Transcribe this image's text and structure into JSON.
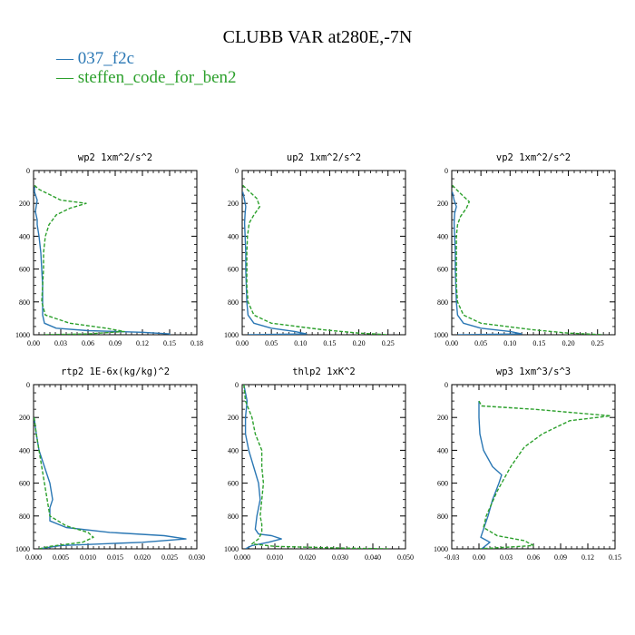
{
  "title": "CLUBB VAR at280E,-7N",
  "legend": [
    {
      "label": "037_f2c",
      "color": "#2a77b4"
    },
    {
      "label": "steffen_code_for_ben2",
      "color": "#2ca02c"
    }
  ],
  "chart_data": [
    {
      "type": "line",
      "title": "wp2  1xm^2/s^2",
      "xlim": [
        0,
        0.18
      ],
      "xticks": [
        "0.00",
        "0.03",
        "0.06",
        "0.09",
        "0.12",
        "0.15",
        "0.18"
      ],
      "ylim": [
        1000,
        0
      ],
      "yticks": [
        "0",
        "200",
        "400",
        "600",
        "800",
        "1000"
      ],
      "series": [
        {
          "name": "037_f2c",
          "color": "#2a77b4",
          "dash": "",
          "x": [
            0.001,
            0.001,
            0.004,
            0.002,
            0.004,
            0.004,
            0.006,
            0.008,
            0.009,
            0.01,
            0.01,
            0.01,
            0.012,
            0.025,
            0.06,
            0.12,
            0.15,
            0.15
          ],
          "y": [
            100,
            130,
            180,
            250,
            300,
            330,
            400,
            500,
            600,
            700,
            800,
            880,
            930,
            960,
            975,
            985,
            995,
            1000
          ]
        },
        {
          "name": "steffen_code_for_ben2",
          "color": "#2ca02c",
          "dash": "4,2",
          "x": [
            0.001,
            0.006,
            0.03,
            0.058,
            0.04,
            0.025,
            0.017,
            0.013,
            0.011,
            0.011,
            0.01,
            0.009,
            0.013,
            0.04,
            0.08,
            0.1,
            0.06,
            0.01
          ],
          "y": [
            90,
            115,
            180,
            200,
            230,
            270,
            330,
            400,
            500,
            600,
            700,
            800,
            880,
            930,
            960,
            980,
            995,
            1000
          ]
        }
      ]
    },
    {
      "type": "line",
      "title": "up2  1xm^2/s^2",
      "xlim": [
        0,
        0.28
      ],
      "xticks": [
        "0.00",
        "0.05",
        "0.10",
        "0.15",
        "0.20",
        "0.25"
      ],
      "ylim": [
        1000,
        0
      ],
      "yticks": [
        "0",
        "200",
        "400",
        "600",
        "800",
        "1000"
      ],
      "series": [
        {
          "name": "037_f2c",
          "color": "#2a77b4",
          "dash": "",
          "x": [
            0.001,
            0.004,
            0.006,
            0.005,
            0.004,
            0.005,
            0.006,
            0.006,
            0.007,
            0.008,
            0.01,
            0.02,
            0.05,
            0.09,
            0.11,
            0.01
          ],
          "y": [
            130,
            180,
            220,
            260,
            320,
            400,
            500,
            600,
            700,
            800,
            880,
            930,
            960,
            980,
            995,
            1000
          ]
        },
        {
          "name": "steffen_code_for_ben2",
          "color": "#2ca02c",
          "dash": "4,2",
          "x": [
            0.001,
            0.01,
            0.025,
            0.03,
            0.02,
            0.012,
            0.009,
            0.008,
            0.008,
            0.008,
            0.01,
            0.02,
            0.05,
            0.14,
            0.2,
            0.25
          ],
          "y": [
            90,
            120,
            170,
            220,
            270,
            320,
            400,
            500,
            600,
            700,
            800,
            880,
            930,
            970,
            990,
            1000
          ]
        }
      ]
    },
    {
      "type": "line",
      "title": "vp2  1xm^2/s^2",
      "xlim": [
        0,
        0.28
      ],
      "xticks": [
        "0.00",
        "0.05",
        "0.10",
        "0.15",
        "0.20",
        "0.25"
      ],
      "ylim": [
        1000,
        0
      ],
      "yticks": [
        "0",
        "200",
        "400",
        "600",
        "800",
        "1000"
      ],
      "series": [
        {
          "name": "037_f2c",
          "color": "#2a77b4",
          "dash": "",
          "x": [
            0.001,
            0.004,
            0.008,
            0.005,
            0.004,
            0.005,
            0.006,
            0.006,
            0.007,
            0.008,
            0.01,
            0.02,
            0.05,
            0.1,
            0.12,
            0.01
          ],
          "y": [
            130,
            180,
            220,
            260,
            320,
            400,
            500,
            600,
            700,
            800,
            880,
            930,
            960,
            980,
            995,
            1000
          ]
        },
        {
          "name": "steffen_code_for_ben2",
          "color": "#2ca02c",
          "dash": "4,2",
          "x": [
            0.001,
            0.012,
            0.03,
            0.025,
            0.015,
            0.01,
            0.008,
            0.008,
            0.008,
            0.008,
            0.01,
            0.02,
            0.05,
            0.14,
            0.2,
            0.26
          ],
          "y": [
            90,
            130,
            190,
            230,
            280,
            330,
            400,
            500,
            600,
            700,
            800,
            880,
            930,
            970,
            990,
            1000
          ]
        }
      ]
    },
    {
      "type": "line",
      "title": "rtp2  1E-6x(kg/kg)^2",
      "xlim": [
        0,
        0.03
      ],
      "xticks": [
        "0.000",
        "0.005",
        "0.010",
        "0.015",
        "0.020",
        "0.025",
        "0.030"
      ],
      "ylim": [
        1000,
        0
      ],
      "yticks": [
        "0",
        "200",
        "400",
        "600",
        "800",
        "1000"
      ],
      "series": [
        {
          "name": "037_f2c",
          "color": "#2a77b4",
          "dash": "",
          "x": [
            0.0001,
            0.0005,
            0.001,
            0.002,
            0.003,
            0.0035,
            0.003,
            0.003,
            0.006,
            0.014,
            0.024,
            0.028,
            0.02,
            0.005,
            0.001
          ],
          "y": [
            200,
            300,
            400,
            500,
            600,
            700,
            750,
            830,
            870,
            900,
            920,
            940,
            960,
            980,
            1000
          ]
        },
        {
          "name": "steffen_code_for_ben2",
          "color": "#2ca02c",
          "dash": "4,2",
          "x": [
            0.0001,
            0.0005,
            0.001,
            0.0015,
            0.002,
            0.0025,
            0.003,
            0.006,
            0.01,
            0.011,
            0.009,
            0.003,
            0.001
          ],
          "y": [
            200,
            300,
            400,
            500,
            600,
            700,
            800,
            860,
            900,
            930,
            960,
            985,
            1000
          ]
        }
      ]
    },
    {
      "type": "line",
      "title": "thlp2  1xK^2",
      "xlim": [
        0,
        0.05
      ],
      "xticks": [
        "0.000",
        "0.010",
        "0.020",
        "0.030",
        "0.040",
        "0.050"
      ],
      "ylim": [
        1000,
        0
      ],
      "yticks": [
        "0",
        "200",
        "400",
        "600",
        "800",
        "1000"
      ],
      "series": [
        {
          "name": "037_f2c",
          "color": "#2a77b4",
          "dash": "",
          "x": [
            0.0005,
            0.001,
            0.0015,
            0.001,
            0.001,
            0.002,
            0.0035,
            0.005,
            0.0055,
            0.0045,
            0.004,
            0.005,
            0.009,
            0.012,
            0.008,
            0.003,
            0.001
          ],
          "y": [
            0,
            50,
            100,
            200,
            300,
            400,
            500,
            600,
            700,
            800,
            880,
            910,
            920,
            940,
            960,
            980,
            1000
          ]
        },
        {
          "name": "steffen_code_for_ben2",
          "color": "#2ca02c",
          "dash": "4,2",
          "x": [
            0.0005,
            0.001,
            0.003,
            0.004,
            0.006,
            0.006,
            0.0065,
            0.006,
            0.0055,
            0.006,
            0.006,
            0.005,
            0.003,
            0.01,
            0.03,
            0.045
          ],
          "y": [
            0,
            100,
            200,
            300,
            400,
            500,
            600,
            700,
            800,
            850,
            900,
            940,
            970,
            985,
            995,
            1000
          ]
        }
      ]
    },
    {
      "type": "line",
      "title": "wp3  1xm^3/s^3",
      "xlim": [
        -0.03,
        0.15
      ],
      "xticks": [
        "-0.03",
        "0.00",
        "0.03",
        "0.06",
        "0.09",
        "0.12",
        "0.15"
      ],
      "ylim": [
        1000,
        0
      ],
      "yticks": [
        "0",
        "200",
        "400",
        "600",
        "800",
        "1000"
      ],
      "series": [
        {
          "name": "037_f2c",
          "color": "#2a77b4",
          "dash": "",
          "x": [
            0.0,
            0.0,
            0.001,
            0.005,
            0.015,
            0.025,
            0.022,
            0.015,
            0.01,
            0.005,
            0.002,
            0.012,
            0.003
          ],
          "y": [
            100,
            200,
            300,
            400,
            500,
            550,
            600,
            700,
            800,
            880,
            930,
            960,
            1000
          ]
        },
        {
          "name": "steffen_code_for_ben2",
          "color": "#2ca02c",
          "dash": "4,2",
          "x": [
            0.0,
            0.003,
            0.06,
            0.145,
            0.1,
            0.07,
            0.05,
            0.035,
            0.02,
            0.008,
            0.005,
            0.02,
            0.05,
            0.06,
            0.001
          ],
          "y": [
            100,
            130,
            150,
            190,
            220,
            300,
            380,
            500,
            650,
            800,
            870,
            920,
            950,
            980,
            1000
          ]
        }
      ]
    }
  ]
}
